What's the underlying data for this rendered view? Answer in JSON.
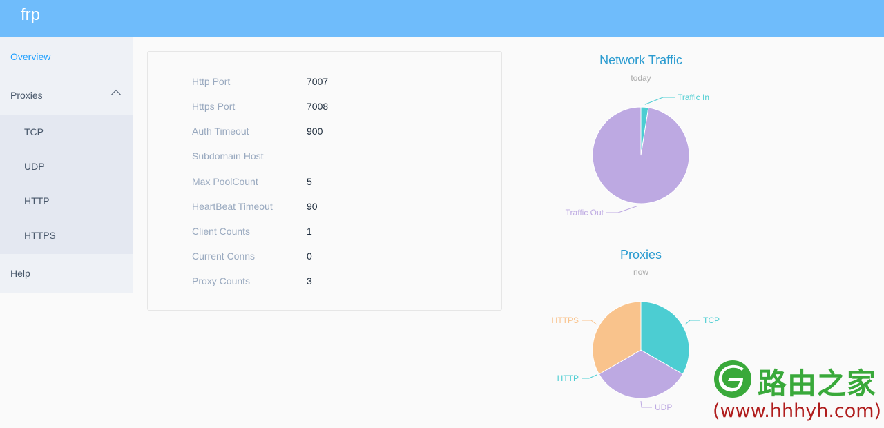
{
  "app": {
    "title": "frp"
  },
  "sidebar": {
    "overview": "Overview",
    "proxies": "Proxies",
    "sub_items": [
      "TCP",
      "UDP",
      "HTTP",
      "HTTPS"
    ],
    "help": "Help"
  },
  "overview": {
    "rows": [
      {
        "label": "Http Port",
        "value": "7007"
      },
      {
        "label": "Https Port",
        "value": "7008"
      },
      {
        "label": "Auth Timeout",
        "value": "900"
      },
      {
        "label": "Subdomain Host",
        "value": ""
      },
      {
        "label": "Max PoolCount",
        "value": "5"
      },
      {
        "label": "HeartBeat Timeout",
        "value": "90"
      },
      {
        "label": "Client Counts",
        "value": "1"
      },
      {
        "label": "Current Conns",
        "value": "0"
      },
      {
        "label": "Proxy Counts",
        "value": "3"
      }
    ]
  },
  "chart_data": [
    {
      "type": "pie",
      "title": "Network Traffic",
      "subtitle": "today",
      "slices": [
        {
          "name": "Traffic In",
          "value": 2.5,
          "color": "#4ccdd2"
        },
        {
          "name": "Traffic Out",
          "value": 97.5,
          "color": "#bda9e2"
        }
      ]
    },
    {
      "type": "pie",
      "title": "Proxies",
      "subtitle": "now",
      "slices": [
        {
          "name": "TCP",
          "value": 1,
          "color": "#4ccdd2"
        },
        {
          "name": "UDP",
          "value": 1,
          "color": "#bda9e2"
        },
        {
          "name": "HTTPS",
          "value": 1,
          "color": "#f9c38c"
        }
      ]
    }
  ],
  "watermark": {
    "text": "路由之家",
    "url": "(www.hhhyh.com)",
    "color": "#39a93a"
  }
}
